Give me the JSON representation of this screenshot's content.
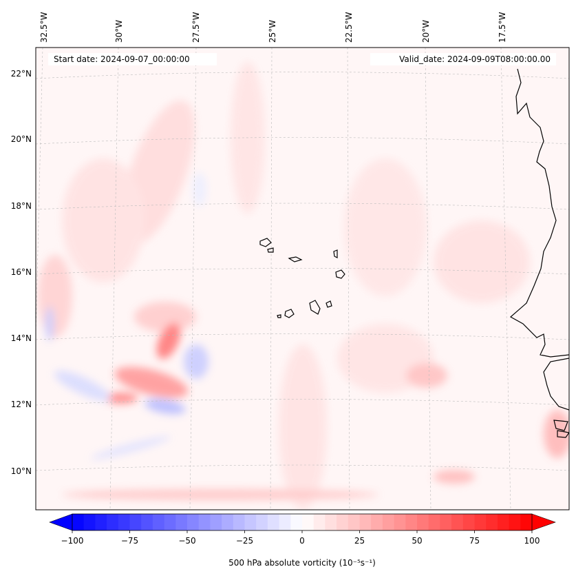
{
  "header": {
    "start_date": "Start date: 2024-09-07_00:00:00",
    "valid_date": "Valid_date: 2024-09-09T08:00:00.00"
  },
  "longitude_labels": [
    "32.5°W",
    "30°W",
    "27.5°W",
    "25°W",
    "22.5°W",
    "20°W",
    "17.5°W"
  ],
  "latitude_labels": [
    "22°N",
    "20°N",
    "18°N",
    "16°N",
    "14°N",
    "12°N",
    "10°N"
  ],
  "colorbar": {
    "label": "500 hPa absolute vorticity (10⁻⁵s⁻¹)",
    "ticks": [
      "−100",
      "−75",
      "−50",
      "−25",
      "0",
      "25",
      "50",
      "75",
      "100"
    ],
    "min": -100,
    "max": 100,
    "negative_color": "#0000ff",
    "positive_color": "#ff0000"
  },
  "colors": {
    "background_tint": "#fff6f6",
    "grid": "#bbbbbb",
    "coast": "#000000"
  }
}
